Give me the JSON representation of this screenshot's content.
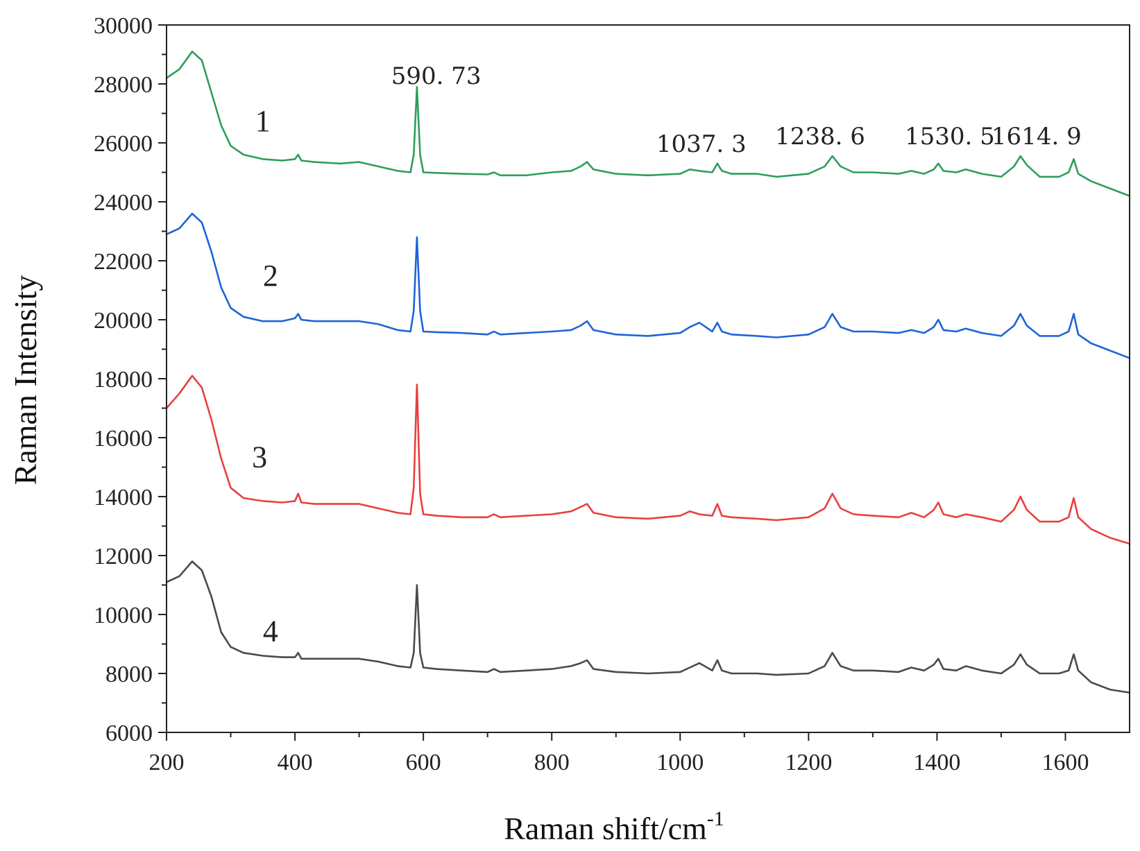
{
  "chart_data": {
    "type": "line",
    "title": "",
    "xlabel": "Raman shift/cm",
    "xlabel_superscript": "-1",
    "ylabel": "Raman Intensity",
    "xlim": [
      200,
      1700
    ],
    "ylim": [
      6000,
      30000
    ],
    "x_ticks": [
      200,
      400,
      600,
      800,
      1000,
      1200,
      1400,
      1600
    ],
    "y_ticks": [
      6000,
      8000,
      10000,
      12000,
      14000,
      16000,
      18000,
      20000,
      22000,
      24000,
      26000,
      28000,
      30000
    ],
    "grid": false,
    "legend": "none",
    "peak_annotations": [
      {
        "text": "590. 73",
        "x": 590.73
      },
      {
        "text": "1037. 3",
        "x": 1037.3
      },
      {
        "text": "1238. 6",
        "x": 1238.6
      },
      {
        "text": "1530. 5",
        "x": 1530.5
      },
      {
        "text": "1614. 9",
        "x": 1614.9
      }
    ],
    "series": [
      {
        "label": "1",
        "color": "#2e9e5b",
        "x": [
          200,
          220,
          240,
          255,
          270,
          285,
          300,
          320,
          350,
          380,
          400,
          405,
          410,
          430,
          470,
          500,
          530,
          560,
          580,
          585,
          590,
          595,
          600,
          620,
          660,
          700,
          710,
          720,
          760,
          800,
          830,
          845,
          855,
          865,
          900,
          950,
          1000,
          1015,
          1030,
          1050,
          1058,
          1065,
          1080,
          1120,
          1150,
          1200,
          1225,
          1237,
          1250,
          1270,
          1300,
          1340,
          1360,
          1380,
          1395,
          1402,
          1410,
          1430,
          1445,
          1470,
          1500,
          1520,
          1530,
          1540,
          1560,
          1590,
          1605,
          1613,
          1620,
          1640,
          1670,
          1700
        ],
        "y": [
          28200,
          28500,
          29100,
          28800,
          27700,
          26600,
          25900,
          25600,
          25450,
          25400,
          25450,
          25600,
          25400,
          25350,
          25300,
          25350,
          25200,
          25050,
          25000,
          25600,
          27900,
          25600,
          25000,
          24980,
          24950,
          24930,
          25000,
          24900,
          24900,
          25000,
          25050,
          25200,
          25350,
          25100,
          24950,
          24900,
          24950,
          25100,
          25050,
          25000,
          25300,
          25050,
          24950,
          24950,
          24850,
          24950,
          25200,
          25550,
          25200,
          25000,
          25000,
          24950,
          25050,
          24950,
          25100,
          25300,
          25050,
          25000,
          25100,
          24950,
          24850,
          25200,
          25550,
          25250,
          24850,
          24850,
          25000,
          25450,
          24950,
          24700,
          24450,
          24200
        ]
      },
      {
        "label": "2",
        "color": "#1d64d8",
        "x": [
          200,
          220,
          240,
          255,
          270,
          285,
          300,
          320,
          350,
          380,
          400,
          405,
          410,
          430,
          470,
          500,
          530,
          560,
          580,
          585,
          590,
          595,
          600,
          620,
          660,
          700,
          710,
          720,
          760,
          800,
          830,
          845,
          855,
          865,
          900,
          950,
          1000,
          1015,
          1030,
          1050,
          1058,
          1065,
          1080,
          1120,
          1150,
          1200,
          1225,
          1237,
          1250,
          1270,
          1300,
          1340,
          1360,
          1380,
          1395,
          1402,
          1410,
          1430,
          1445,
          1470,
          1500,
          1520,
          1530,
          1540,
          1560,
          1590,
          1605,
          1613,
          1620,
          1640,
          1670,
          1700
        ],
        "y": [
          22900,
          23100,
          23600,
          23300,
          22300,
          21100,
          20400,
          20100,
          19950,
          19950,
          20050,
          20200,
          20000,
          19950,
          19950,
          19950,
          19850,
          19650,
          19600,
          20300,
          22800,
          20300,
          19600,
          19580,
          19550,
          19500,
          19600,
          19500,
          19550,
          19600,
          19650,
          19800,
          19950,
          19650,
          19500,
          19450,
          19550,
          19750,
          19900,
          19600,
          19900,
          19600,
          19500,
          19450,
          19400,
          19500,
          19750,
          20200,
          19750,
          19600,
          19600,
          19550,
          19650,
          19550,
          19750,
          20000,
          19650,
          19600,
          19700,
          19550,
          19450,
          19800,
          20200,
          19800,
          19450,
          19450,
          19600,
          20200,
          19500,
          19200,
          18950,
          18700
        ]
      },
      {
        "label": "3",
        "color": "#e8403e",
        "x": [
          200,
          220,
          240,
          255,
          270,
          285,
          300,
          320,
          350,
          380,
          400,
          405,
          410,
          430,
          470,
          500,
          530,
          560,
          580,
          585,
          590,
          595,
          600,
          620,
          660,
          700,
          710,
          720,
          760,
          800,
          830,
          845,
          855,
          865,
          900,
          950,
          1000,
          1015,
          1030,
          1050,
          1058,
          1065,
          1080,
          1120,
          1150,
          1200,
          1225,
          1237,
          1250,
          1270,
          1300,
          1340,
          1360,
          1380,
          1395,
          1402,
          1410,
          1430,
          1445,
          1470,
          1500,
          1520,
          1530,
          1540,
          1560,
          1590,
          1605,
          1613,
          1620,
          1640,
          1670,
          1700
        ],
        "y": [
          17000,
          17500,
          18100,
          17700,
          16600,
          15300,
          14300,
          13950,
          13850,
          13800,
          13850,
          14100,
          13800,
          13750,
          13750,
          13750,
          13600,
          13450,
          13400,
          14300,
          17800,
          14100,
          13400,
          13350,
          13300,
          13300,
          13400,
          13300,
          13350,
          13400,
          13500,
          13650,
          13750,
          13450,
          13300,
          13250,
          13350,
          13500,
          13400,
          13350,
          13750,
          13350,
          13300,
          13250,
          13200,
          13300,
          13600,
          14100,
          13600,
          13400,
          13350,
          13300,
          13450,
          13300,
          13550,
          13800,
          13400,
          13300,
          13400,
          13300,
          13150,
          13550,
          14000,
          13550,
          13150,
          13150,
          13300,
          13950,
          13300,
          12900,
          12600,
          12400
        ]
      },
      {
        "label": "4",
        "color": "#4a4a4a",
        "x": [
          200,
          220,
          240,
          255,
          270,
          285,
          300,
          320,
          350,
          380,
          400,
          405,
          410,
          430,
          470,
          500,
          530,
          560,
          580,
          585,
          590,
          595,
          600,
          620,
          660,
          700,
          710,
          720,
          760,
          800,
          830,
          845,
          855,
          865,
          900,
          950,
          1000,
          1015,
          1030,
          1050,
          1058,
          1065,
          1080,
          1120,
          1150,
          1200,
          1225,
          1237,
          1250,
          1270,
          1300,
          1340,
          1360,
          1380,
          1395,
          1402,
          1410,
          1430,
          1445,
          1470,
          1500,
          1520,
          1530,
          1540,
          1560,
          1590,
          1605,
          1613,
          1620,
          1640,
          1670,
          1700
        ],
        "y": [
          11100,
          11300,
          11800,
          11500,
          10600,
          9400,
          8900,
          8700,
          8600,
          8550,
          8550,
          8700,
          8500,
          8500,
          8500,
          8500,
          8400,
          8250,
          8200,
          8700,
          11000,
          8700,
          8200,
          8150,
          8100,
          8050,
          8150,
          8050,
          8100,
          8150,
          8250,
          8350,
          8450,
          8150,
          8050,
          8000,
          8050,
          8200,
          8350,
          8100,
          8450,
          8100,
          8000,
          8000,
          7950,
          8000,
          8250,
          8700,
          8250,
          8100,
          8100,
          8050,
          8200,
          8100,
          8300,
          8500,
          8150,
          8100,
          8250,
          8100,
          8000,
          8300,
          8650,
          8300,
          8000,
          8000,
          8100,
          8650,
          8100,
          7700,
          7450,
          7350
        ]
      }
    ]
  }
}
